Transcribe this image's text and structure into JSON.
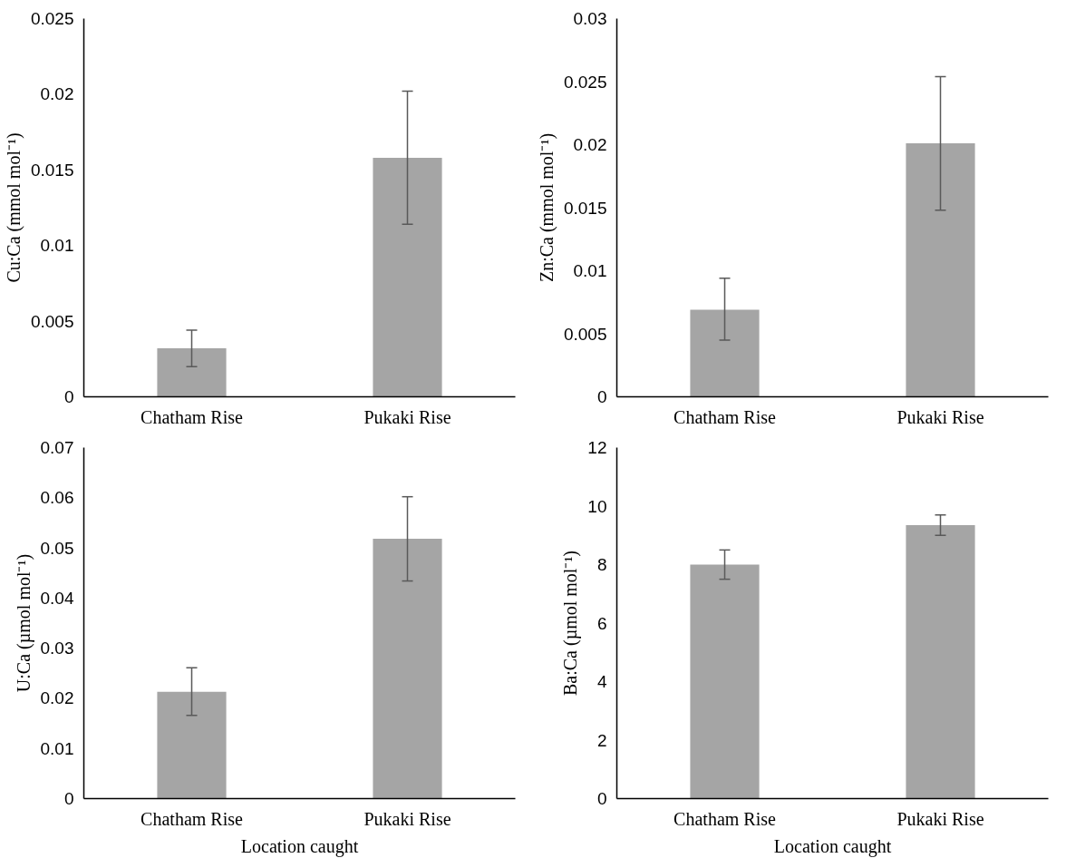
{
  "chart_data": [
    {
      "type": "bar",
      "ylabel": "Cu:Ca (mmol mol⁻¹)",
      "categories": [
        "Chatham Rise",
        "Pukaki Rise"
      ],
      "series": [
        {
          "color": "#a5a5a5",
          "values": [
            0.0032,
            0.0158
          ],
          "errors": [
            [
              0.002,
              0.0044
            ],
            [
              0.0114,
              0.0202
            ]
          ]
        }
      ],
      "ylim": [
        0,
        0.025
      ],
      "yticks": [
        0,
        0.005,
        0.01,
        0.015,
        0.02,
        0.025
      ]
    },
    {
      "type": "bar",
      "ylabel": "Zn:Ca (mmol mol⁻¹)",
      "categories": [
        "Chatham Rise",
        "Pukaki Rise"
      ],
      "series": [
        {
          "color": "#a5a5a5",
          "values": [
            0.0069,
            0.0201
          ],
          "errors": [
            [
              0.0045,
              0.0094
            ],
            [
              0.0148,
              0.0254
            ]
          ]
        }
      ],
      "ylim": [
        0,
        0.03
      ],
      "yticks": [
        0,
        0.005,
        0.01,
        0.015,
        0.02,
        0.025,
        0.03
      ]
    },
    {
      "type": "bar",
      "xlabel": "Location caught",
      "ylabel": "U:Ca (µmol mol⁻¹)",
      "categories": [
        "Chatham Rise",
        "Pukaki Rise"
      ],
      "series": [
        {
          "color": "#a5a5a5",
          "values": [
            0.0213,
            0.0518
          ],
          "errors": [
            [
              0.0166,
              0.0261
            ],
            [
              0.0434,
              0.0602
            ]
          ]
        }
      ],
      "ylim": [
        0,
        0.07
      ],
      "yticks": [
        0,
        0.01,
        0.02,
        0.03,
        0.04,
        0.05,
        0.06,
        0.07
      ]
    },
    {
      "type": "bar",
      "xlabel": "Location caught",
      "ylabel": "Ba:Ca (µmol mol⁻¹)",
      "categories": [
        "Chatham Rise",
        "Pukaki Rise"
      ],
      "series": [
        {
          "color": "#a5a5a5",
          "values": [
            8.0,
            9.35
          ],
          "errors": [
            [
              7.5,
              8.5
            ],
            [
              9.0,
              9.7
            ]
          ]
        }
      ],
      "ylim": [
        0,
        12
      ],
      "yticks": [
        0,
        2,
        4,
        6,
        8,
        10,
        12
      ]
    }
  ]
}
